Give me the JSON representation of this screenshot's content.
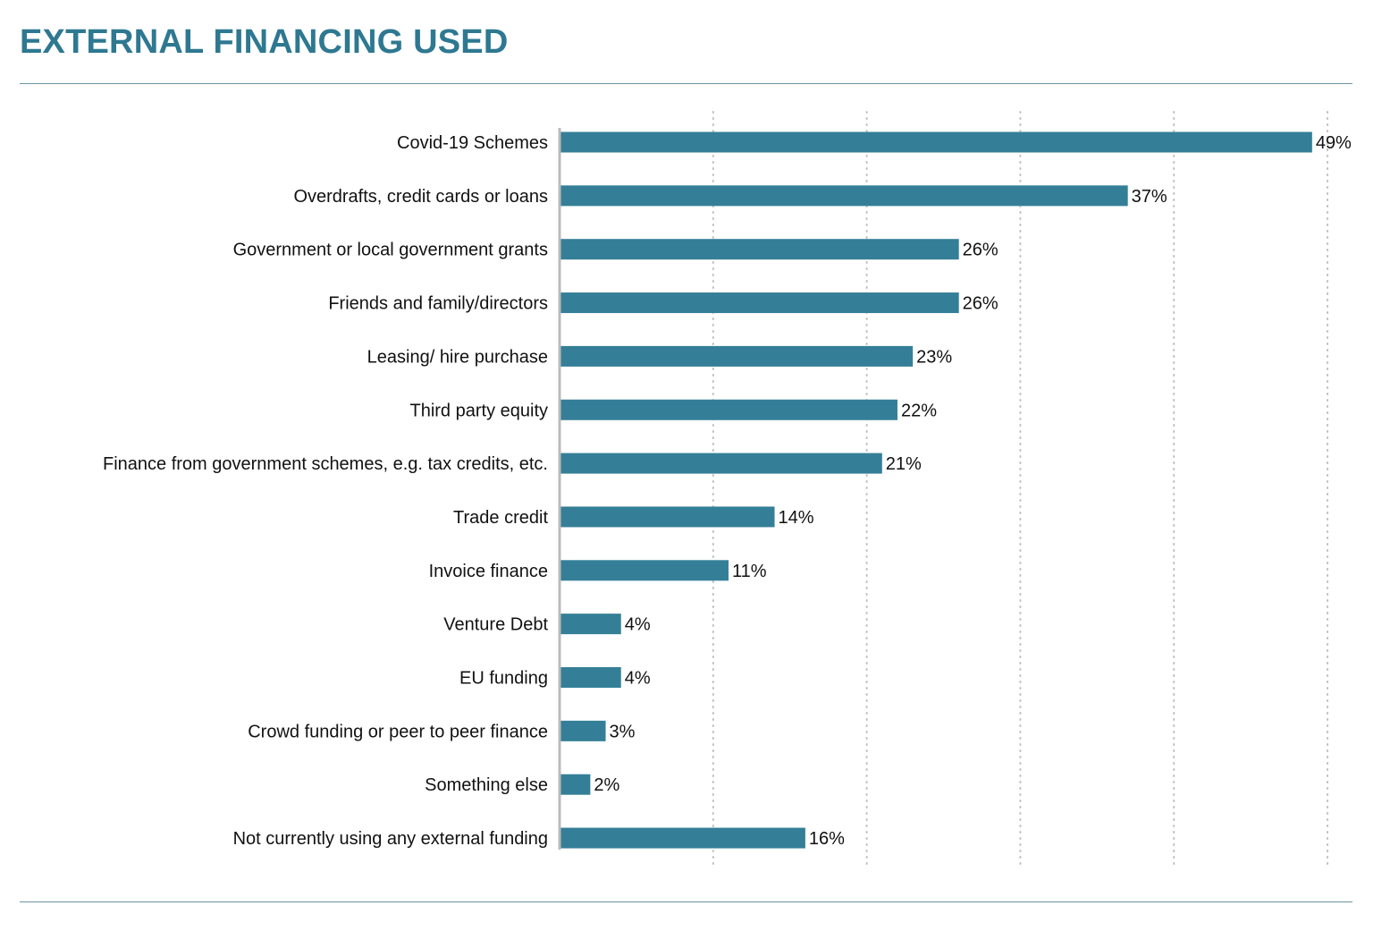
{
  "title": "EXTERNAL FINANCING USED",
  "colors": {
    "bar": "#347f97",
    "title": "#2e7891",
    "rule": "#6c93a6",
    "axis": "#bbbbbb",
    "grid": "#bfbfbf"
  },
  "chart_data": {
    "type": "bar",
    "orientation": "horizontal",
    "title": "EXTERNAL FINANCING USED",
    "categories": [
      "Covid-19 Schemes",
      "Overdrafts, credit cards or loans",
      "Government or local government grants",
      "Friends and family/directors",
      "Leasing/ hire purchase",
      "Third party equity",
      "Finance from government schemes, e.g. tax credits, etc.",
      "Trade credit",
      "Invoice finance",
      "Venture Debt",
      "EU funding",
      "Crowd funding or peer to peer finance",
      "Something else",
      "Not currently using any external funding"
    ],
    "values": [
      49,
      37,
      26,
      26,
      23,
      22,
      21,
      14,
      11,
      4,
      4,
      3,
      2,
      16
    ],
    "value_labels": [
      "49%",
      "37%",
      "26%",
      "26%",
      "23%",
      "22%",
      "21%",
      "14%",
      "11%",
      "4%",
      "4%",
      "3%",
      "2%",
      "16%"
    ],
    "xlim": [
      0,
      50
    ],
    "grid": true,
    "legend": "none"
  }
}
